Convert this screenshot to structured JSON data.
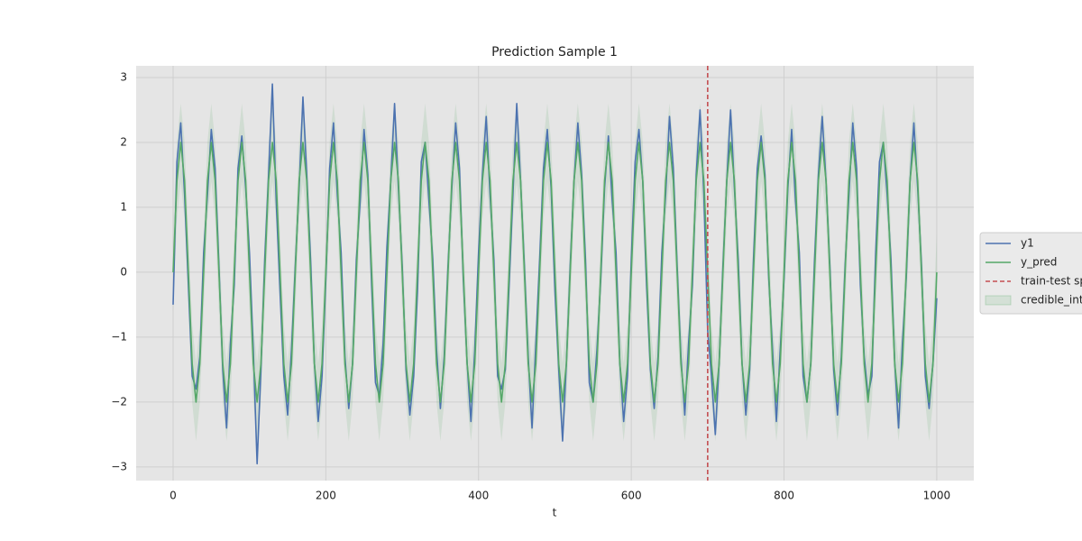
{
  "chart_data": {
    "type": "line",
    "title": "Prediction Sample 1",
    "xlabel": "t",
    "x": [
      0,
      5,
      10,
      15,
      20,
      25,
      30,
      35,
      40,
      45,
      50,
      55,
      60,
      65,
      70,
      75,
      80,
      85,
      90,
      95,
      100,
      105,
      110,
      115,
      120,
      125,
      130,
      135,
      140,
      145,
      150,
      155,
      160,
      165,
      170,
      175,
      180,
      185,
      190,
      195,
      200,
      205,
      210,
      215,
      220,
      225,
      230,
      235,
      240,
      245,
      250,
      255,
      260,
      265,
      270,
      275,
      280,
      285,
      290,
      295,
      300,
      305,
      310,
      315,
      320,
      325,
      330,
      335,
      340,
      345,
      350,
      355,
      360,
      365,
      370,
      375,
      380,
      385,
      390,
      395,
      400,
      405,
      410,
      415,
      420,
      425,
      430,
      435,
      440,
      445,
      450,
      455,
      460,
      465,
      470,
      475,
      480,
      485,
      490,
      495,
      500,
      505,
      510,
      515,
      520,
      525,
      530,
      535,
      540,
      545,
      550,
      555,
      560,
      565,
      570,
      575,
      580,
      585,
      590,
      595,
      600,
      605,
      610,
      615,
      620,
      625,
      630,
      635,
      640,
      645,
      650,
      655,
      660,
      665,
      670,
      675,
      680,
      685,
      690,
      695,
      700,
      705,
      710,
      715,
      720,
      725,
      730,
      735,
      740,
      745,
      750,
      755,
      760,
      765,
      770,
      775,
      780,
      785,
      790,
      795,
      800,
      805,
      810,
      815,
      820,
      825,
      830,
      835,
      840,
      845,
      850,
      855,
      860,
      865,
      870,
      875,
      880,
      885,
      890,
      895,
      900,
      905,
      910,
      915,
      920,
      925,
      930,
      935,
      940,
      945,
      950,
      955,
      960,
      965,
      970,
      975,
      980,
      985,
      990,
      995,
      1000
    ],
    "series": [
      {
        "name": "y1",
        "color": "#4c72b0",
        "values": [
          -0.5,
          1.7,
          2.3,
          1.2,
          -0.2,
          -1.6,
          -1.8,
          -1.3,
          0.3,
          1.2,
          2.2,
          1.6,
          0.1,
          -1.5,
          -2.4,
          -1.1,
          -0.2,
          1.6,
          2.1,
          1.3,
          0.3,
          -1.2,
          -2.95,
          -1.5,
          0.2,
          1.5,
          2.9,
          1.1,
          -0.3,
          -1.6,
          -2.2,
          -1.2,
          0.1,
          1.3,
          2.7,
          1.5,
          0.2,
          -1.4,
          -2.3,
          -1.6,
          -0.1,
          1.6,
          2.3,
          1.2,
          0.3,
          -1.3,
          -2.1,
          -1.4,
          0.2,
          1.1,
          2.2,
          1.5,
          -0.2,
          -1.7,
          -1.9,
          -1.1,
          0.4,
          1.4,
          2.6,
          1.3,
          0.1,
          -1.5,
          -2.2,
          -1.6,
          -0.3,
          1.7,
          2.0,
          1.1,
          0.2,
          -1.2,
          -2.1,
          -1.3,
          0.1,
          1.3,
          2.3,
          1.6,
          -0.1,
          -1.4,
          -2.3,
          -1.2,
          0.3,
          1.5,
          2.4,
          1.2,
          0.2,
          -1.6,
          -1.8,
          -1.5,
          -0.2,
          1.2,
          2.6,
          1.4,
          0.1,
          -1.3,
          -2.4,
          -1.1,
          0.2,
          1.6,
          2.2,
          1.3,
          -0.3,
          -1.5,
          -2.6,
          -1.4,
          0.1,
          1.4,
          2.3,
          1.5,
          0.2,
          -1.7,
          -2.0,
          -1.2,
          -0.1,
          1.3,
          2.1,
          1.1,
          0.3,
          -1.4,
          -2.3,
          -1.6,
          0.2,
          1.7,
          2.2,
          1.4,
          -0.2,
          -1.5,
          -2.1,
          -1.3,
          0.3,
          1.2,
          2.4,
          1.6,
          0.1,
          -1.3,
          -2.2,
          -1.1,
          -0.2,
          1.5,
          2.5,
          1.2,
          -0.9,
          -1.6,
          -2.5,
          -1.4,
          0.1,
          1.4,
          2.5,
          1.3,
          0.2,
          -1.4,
          -2.2,
          -1.5,
          0.2,
          1.6,
          2.1,
          1.5,
          -0.1,
          -1.2,
          -2.3,
          -1.2,
          -0.1,
          1.3,
          2.2,
          1.1,
          0.3,
          -1.6,
          -2.0,
          -1.4,
          0.2,
          1.5,
          2.4,
          1.4,
          0.1,
          -1.5,
          -2.2,
          -1.3,
          0.1,
          1.2,
          2.3,
          1.6,
          -0.2,
          -1.3,
          -1.9,
          -1.6,
          0.3,
          1.7,
          2.0,
          1.2,
          0.2,
          -1.4,
          -2.4,
          -1.1,
          -0.1,
          1.4,
          2.3,
          1.3,
          0.1,
          -1.6,
          -2.1,
          -1.4,
          -0.4
        ]
      },
      {
        "name": "y_pred",
        "color": "#55a868",
        "values": [
          0,
          1.41,
          2,
          1.41,
          0,
          -1.41,
          -2,
          -1.41,
          0,
          1.41,
          2,
          1.41,
          0,
          -1.41,
          -2,
          -1.41,
          0,
          1.41,
          2,
          1.41,
          0,
          -1.41,
          -2,
          -1.41,
          0,
          1.41,
          2,
          1.41,
          0,
          -1.41,
          -2,
          -1.41,
          0,
          1.41,
          2,
          1.41,
          0,
          -1.41,
          -2,
          -1.41,
          0,
          1.41,
          2,
          1.41,
          0,
          -1.41,
          -2,
          -1.41,
          0,
          1.41,
          2,
          1.41,
          0,
          -1.41,
          -2,
          -1.41,
          0,
          1.41,
          2,
          1.41,
          0,
          -1.41,
          -2,
          -1.41,
          0,
          1.41,
          2,
          1.41,
          0,
          -1.41,
          -2,
          -1.41,
          0,
          1.41,
          2,
          1.41,
          0,
          -1.41,
          -2,
          -1.41,
          0,
          1.41,
          2,
          1.41,
          0,
          -1.41,
          -2,
          -1.41,
          0,
          1.41,
          2,
          1.41,
          0,
          -1.41,
          -2,
          -1.41,
          0,
          1.41,
          2,
          1.41,
          0,
          -1.41,
          -2,
          -1.41,
          0,
          1.41,
          2,
          1.41,
          0,
          -1.41,
          -2,
          -1.41,
          0,
          1.41,
          2,
          1.41,
          0,
          -1.41,
          -2,
          -1.41,
          0,
          1.41,
          2,
          1.41,
          0,
          -1.41,
          -2,
          -1.41,
          0,
          1.41,
          2,
          1.41,
          0,
          -1.41,
          -2,
          -1.41,
          0,
          1.41,
          2,
          1.41,
          0,
          -1.41,
          -2,
          -1.41,
          0,
          1.41,
          2,
          1.41,
          0,
          -1.41,
          -2,
          -1.41,
          0,
          1.41,
          2,
          1.41,
          0,
          -1.41,
          -2,
          -1.41,
          0,
          1.41,
          2,
          1.41,
          0,
          -1.41,
          -2,
          -1.41,
          0,
          1.41,
          2,
          1.41,
          0,
          -1.41,
          -2,
          -1.41,
          0,
          1.41,
          2,
          1.41,
          0,
          -1.41,
          -2,
          -1.41,
          0,
          1.41,
          2,
          1.41,
          0,
          -1.41,
          -2,
          -1.41,
          0,
          1.41,
          2,
          1.41,
          0,
          -1.41,
          -2,
          -1.41,
          0
        ]
      },
      {
        "name": "train-test split",
        "color": "#c44e52",
        "x": 700,
        "dash": "5,3"
      },
      {
        "name": "credible_interval",
        "color": "#55a868",
        "alpha": 0.15,
        "lower": [
          -0.6,
          0.81,
          1.4,
          0.81,
          -0.6,
          -2.01,
          -2.6,
          -2.01,
          -0.6,
          0.81,
          1.4,
          0.81,
          -0.6,
          -2.01,
          -2.6,
          -2.01,
          -0.6,
          0.81,
          1.4,
          0.81,
          -0.6,
          -2.01,
          -2.6,
          -2.01,
          -0.6,
          0.81,
          1.4,
          0.81,
          -0.6,
          -2.01,
          -2.6,
          -2.01,
          -0.6,
          0.81,
          1.4,
          0.81,
          -0.6,
          -2.01,
          -2.6,
          -2.01,
          -0.6,
          0.81,
          1.4,
          0.81,
          -0.6,
          -2.01,
          -2.6,
          -2.01,
          -0.6,
          0.81,
          1.4,
          0.81,
          -0.6,
          -2.01,
          -2.6,
          -2.01,
          -0.6,
          0.81,
          1.4,
          0.81,
          -0.6,
          -2.01,
          -2.6,
          -2.01,
          -0.6,
          0.81,
          1.4,
          0.81,
          -0.6,
          -2.01,
          -2.6,
          -2.01,
          -0.6,
          0.81,
          1.4,
          0.81,
          -0.6,
          -2.01,
          -2.6,
          -2.01,
          -0.6,
          0.81,
          1.4,
          0.81,
          -0.6,
          -2.01,
          -2.6,
          -2.01,
          -0.6,
          0.81,
          1.4,
          0.81,
          -0.6,
          -2.01,
          -2.6,
          -2.01,
          -0.6,
          0.81,
          1.4,
          0.81,
          -0.6,
          -2.01,
          -2.6,
          -2.01,
          -0.6,
          0.81,
          1.4,
          0.81,
          -0.6,
          -2.01,
          -2.6,
          -2.01,
          -0.6,
          0.81,
          1.4,
          0.81,
          -0.6,
          -2.01,
          -2.6,
          -2.01,
          -0.6,
          0.81,
          1.4,
          0.81,
          -0.6,
          -2.01,
          -2.6,
          -2.01,
          -0.6,
          0.81,
          1.4,
          0.81,
          -0.6,
          -2.01,
          -2.6,
          -2.01,
          -0.6,
          0.81,
          1.4,
          0.81,
          -0.6,
          -2.01,
          -2.6,
          -2.01,
          -0.6,
          0.81,
          1.4,
          0.81,
          -0.6,
          -2.01,
          -2.6,
          -2.01,
          -0.6,
          0.81,
          1.4,
          0.81,
          -0.6,
          -2.01,
          -2.6,
          -2.01,
          -0.6,
          0.81,
          1.4,
          0.81,
          -0.6,
          -2.01,
          -2.6,
          -2.01,
          -0.6,
          0.81,
          1.4,
          0.81,
          -0.6,
          -2.01,
          -2.6,
          -2.01,
          -0.6,
          0.81,
          1.4,
          0.81,
          -0.6,
          -2.01,
          -2.6,
          -2.01,
          -0.6,
          0.81,
          1.4,
          0.81,
          -0.6,
          -2.01,
          -2.6,
          -2.01,
          -0.6,
          0.81,
          1.4,
          0.81,
          -0.6,
          -2.01,
          -2.6,
          -2.01,
          -0.6
        ],
        "upper": [
          0.6,
          2.01,
          2.6,
          2.01,
          0.6,
          -0.81,
          -1.4,
          -0.81,
          0.6,
          2.01,
          2.6,
          2.01,
          0.6,
          -0.81,
          -1.4,
          -0.81,
          0.6,
          2.01,
          2.6,
          2.01,
          0.6,
          -0.81,
          -1.4,
          -0.81,
          0.6,
          2.01,
          2.6,
          2.01,
          0.6,
          -0.81,
          -1.4,
          -0.81,
          0.6,
          2.01,
          2.6,
          2.01,
          0.6,
          -0.81,
          -1.4,
          -0.81,
          0.6,
          2.01,
          2.6,
          2.01,
          0.6,
          -0.81,
          -1.4,
          -0.81,
          0.6,
          2.01,
          2.6,
          2.01,
          0.6,
          -0.81,
          -1.4,
          -0.81,
          0.6,
          2.01,
          2.6,
          2.01,
          0.6,
          -0.81,
          -1.4,
          -0.81,
          0.6,
          2.01,
          2.6,
          2.01,
          0.6,
          -0.81,
          -1.4,
          -0.81,
          0.6,
          2.01,
          2.6,
          2.01,
          0.6,
          -0.81,
          -1.4,
          -0.81,
          0.6,
          2.01,
          2.6,
          2.01,
          0.6,
          -0.81,
          -1.4,
          -0.81,
          0.6,
          2.01,
          2.6,
          2.01,
          0.6,
          -0.81,
          -1.4,
          -0.81,
          0.6,
          2.01,
          2.6,
          2.01,
          0.6,
          -0.81,
          -1.4,
          -0.81,
          0.6,
          2.01,
          2.6,
          2.01,
          0.6,
          -0.81,
          -1.4,
          -0.81,
          0.6,
          2.01,
          2.6,
          2.01,
          0.6,
          -0.81,
          -1.4,
          -0.81,
          0.6,
          2.01,
          2.6,
          2.01,
          0.6,
          -0.81,
          -1.4,
          -0.81,
          0.6,
          2.01,
          2.6,
          2.01,
          0.6,
          -0.81,
          -1.4,
          -0.81,
          0.6,
          2.01,
          2.6,
          2.01,
          0.6,
          -0.81,
          -1.4,
          -0.81,
          0.6,
          2.01,
          2.6,
          2.01,
          0.6,
          -0.81,
          -1.4,
          -0.81,
          0.6,
          2.01,
          2.6,
          2.01,
          0.6,
          -0.81,
          -1.4,
          -0.81,
          0.6,
          2.01,
          2.6,
          2.01,
          0.6,
          -0.81,
          -1.4,
          -0.81,
          0.6,
          2.01,
          2.6,
          2.01,
          0.6,
          -0.81,
          -1.4,
          -0.81,
          0.6,
          2.01,
          2.6,
          2.01,
          0.6,
          -0.81,
          -1.4,
          -0.81,
          0.6,
          2.01,
          2.6,
          2.01,
          0.6,
          -0.81,
          -1.4,
          -0.81,
          0.6,
          2.01,
          2.6,
          2.01,
          0.6,
          -0.81,
          -1.4,
          -0.81,
          0.6
        ]
      }
    ],
    "xlim": [
      -48.4,
      1048.5
    ],
    "ylim": [
      -3.21,
      3.18
    ],
    "xticks": [
      0,
      200,
      400,
      600,
      800,
      1000
    ],
    "yticks": [
      {
        "value": -3,
        "label": "−3"
      },
      {
        "value": -2,
        "label": "−2"
      },
      {
        "value": -1,
        "label": "−1"
      },
      0,
      1,
      2,
      3
    ],
    "grid": true,
    "legend": "outside right"
  }
}
